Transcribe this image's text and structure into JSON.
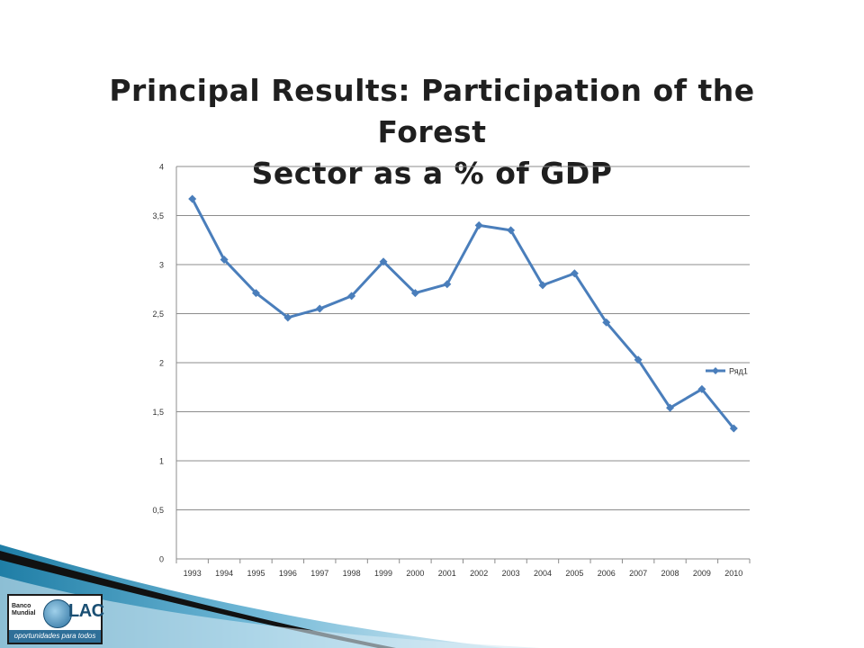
{
  "slide": {
    "title_line1": "Principal Results: Participation of the Forest",
    "title_line2": "Sector as a % of GDP"
  },
  "logo": {
    "bank_line1": "Banco",
    "bank_line2": "Mundial",
    "region": "LAC",
    "tagline": "oportunidades para todos"
  },
  "chart_data": {
    "type": "line",
    "title": "",
    "xlabel": "",
    "ylabel": "",
    "categories": [
      "1993",
      "1994",
      "1995",
      "1996",
      "1997",
      "1998",
      "1999",
      "2000",
      "2001",
      "2002",
      "2003",
      "2004",
      "2005",
      "2006",
      "2007",
      "2008",
      "2009",
      "2010"
    ],
    "series": [
      {
        "name": "Ряд1",
        "color": "#4a7ebb",
        "marker": "diamond",
        "values": [
          3.67,
          3.05,
          2.71,
          2.46,
          2.55,
          2.68,
          3.03,
          2.71,
          2.8,
          3.4,
          3.35,
          2.79,
          2.91,
          2.41,
          2.03,
          1.54,
          1.73,
          1.33
        ]
      }
    ],
    "ylim": [
      0,
      4
    ],
    "yticks": [
      "0",
      "0,5",
      "1",
      "1,5",
      "2",
      "2,5",
      "3",
      "3,5",
      "4"
    ],
    "grid": true,
    "legend": "right"
  },
  "colors": {
    "series": "#4a7ebb",
    "gridline": "#8c8c8c",
    "decor_teal": "#2a8fb5",
    "decor_dark": "#111111"
  }
}
